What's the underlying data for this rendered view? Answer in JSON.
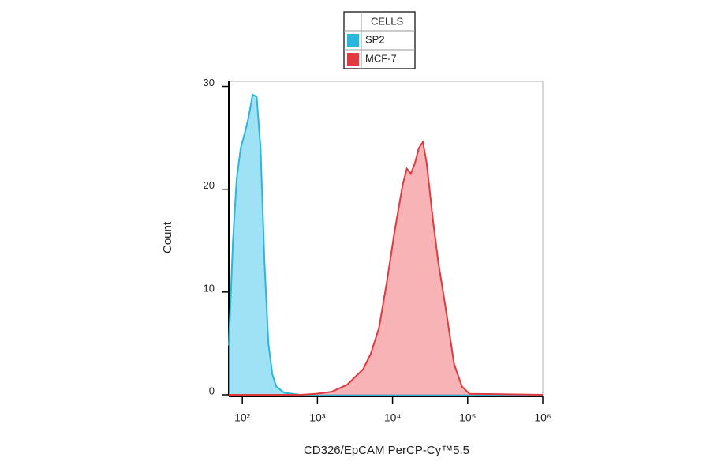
{
  "chart_data": {
    "type": "histogram-overlay",
    "x_label": "CD326/EpCAM PerCP-Cy™5.5",
    "y_label": "Count",
    "legend_title": "CELLS",
    "legend": "top-center",
    "xscale": "log",
    "xlim": [
      66,
      1000000
    ],
    "xticks": [
      {
        "value": 100,
        "label": "10²"
      },
      {
        "value": 1000,
        "label": "10³"
      },
      {
        "value": 10000,
        "label": "10⁴"
      },
      {
        "value": 100000,
        "label": "10⁵"
      },
      {
        "value": 1000000,
        "label": "10⁶"
      }
    ],
    "ylim": [
      0,
      30.5
    ],
    "yticks": [
      0,
      10,
      20,
      30
    ],
    "x": [
      66,
      75,
      84,
      95,
      108,
      121,
      137,
      155,
      175,
      197,
      222,
      251,
      284,
      361,
      587,
      960,
      1550,
      2500,
      4070,
      5130,
      6600,
      8400,
      10700,
      13700,
      15500,
      17500,
      19800,
      22400,
      25300,
      28500,
      34500,
      40500,
      52000,
      66000,
      84000,
      106000,
      1000000
    ],
    "series": [
      {
        "name": "SP2",
        "color": "#2bb6dc",
        "fill": "#7fd8f2",
        "values": [
          4.8,
          15,
          21,
          24,
          25.5,
          27,
          29.2,
          29,
          24,
          13,
          5,
          2,
          0.8,
          0.2,
          0,
          0,
          0,
          0,
          0,
          0,
          0,
          0,
          0,
          0,
          0,
          0,
          0,
          0,
          0,
          0,
          0,
          0,
          0,
          0,
          0,
          0,
          0
        ]
      },
      {
        "name": "MCF-7",
        "color": "#e0393e",
        "fill": "#f49a9e",
        "values": [
          0,
          0,
          0,
          0,
          0,
          0,
          0,
          0,
          0,
          0,
          0,
          0,
          0,
          0,
          0,
          0.1,
          0.3,
          1,
          2.5,
          4,
          6.5,
          11,
          16,
          20.5,
          22,
          21.5,
          22.5,
          24,
          24.6,
          22.5,
          17,
          13,
          8,
          3,
          0.8,
          0.1,
          0
        ]
      }
    ]
  }
}
